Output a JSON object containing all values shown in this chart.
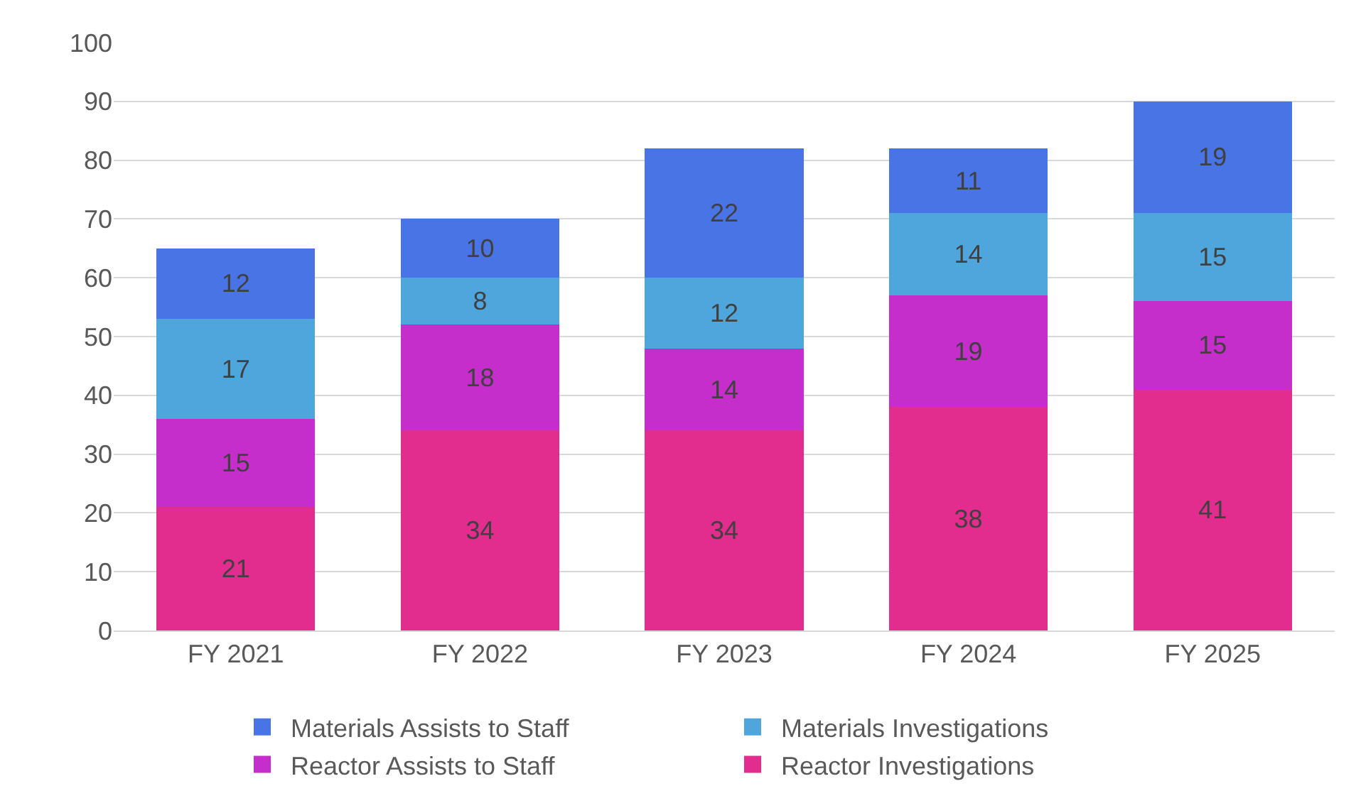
{
  "chart_data": {
    "type": "bar",
    "stacked": true,
    "categories": [
      "FY 2021",
      "FY 2022",
      "FY 2023",
      "FY 2024",
      "FY 2025"
    ],
    "series": [
      {
        "name": "Reactor Investigations",
        "color": "#e22c8e",
        "values": [
          21,
          34,
          34,
          38,
          41
        ]
      },
      {
        "name": "Reactor Assists to Staff",
        "color": "#c62ecc",
        "values": [
          15,
          18,
          14,
          19,
          15
        ]
      },
      {
        "name": "Materials Investigations",
        "color": "#4ea6dc",
        "values": [
          17,
          8,
          12,
          14,
          15
        ]
      },
      {
        "name": "Materials Assists to Staff",
        "color": "#4874e6",
        "values": [
          12,
          10,
          22,
          11,
          19
        ]
      }
    ],
    "ylim": [
      0,
      100
    ],
    "yticks": [
      0,
      10,
      20,
      30,
      40,
      50,
      60,
      70,
      80,
      90,
      100
    ],
    "grid": "y",
    "legend": "bottom",
    "data_labels": true
  }
}
